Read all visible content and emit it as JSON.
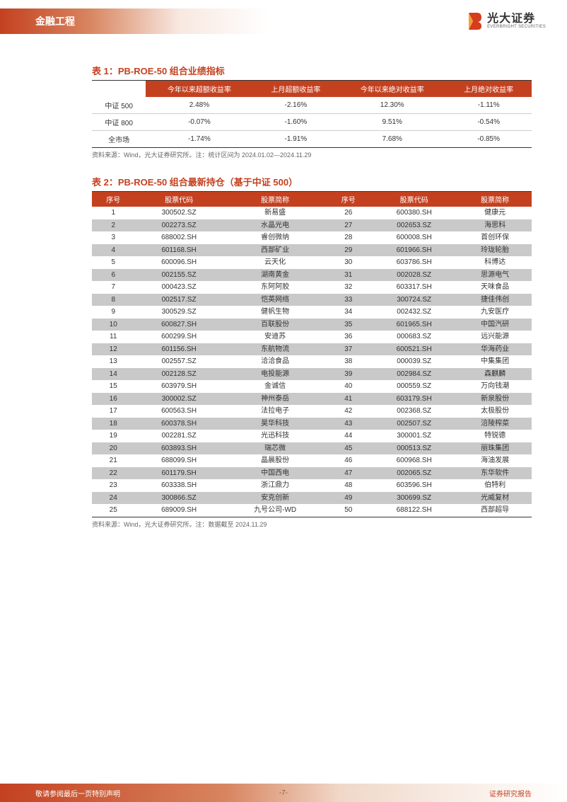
{
  "header": {
    "category": "金融工程",
    "logo_cn": "光大证券",
    "logo_en": "EVERBRIGHT SECURITIES"
  },
  "colors": {
    "brand": "#c44120",
    "header_text": "#ffffff",
    "row_even_bg": "#c9c9c9",
    "border": "#333333",
    "source_text": "#666666"
  },
  "table1": {
    "title": "表 1：PB-ROE-50 组合业绩指标",
    "columns": [
      "",
      "今年以来超额收益率",
      "上月超额收益率",
      "今年以来绝对收益率",
      "上月绝对收益率"
    ],
    "rows": [
      [
        "中证 500",
        "2.48%",
        "-2.16%",
        "12.30%",
        "-1.11%"
      ],
      [
        "中证 800",
        "-0.07%",
        "-1.60%",
        "9.51%",
        "-0.54%"
      ],
      [
        "全市场",
        "-1.74%",
        "-1.91%",
        "7.68%",
        "-0.85%"
      ]
    ],
    "source": "资料来源：Wind，光大证券研究所。注：统计区间为 2024.01.02—2024.11.29"
  },
  "table2": {
    "title": "表 2：PB-ROE-50 组合最新持仓（基于中证 500）",
    "columns": [
      "序号",
      "股票代码",
      "股票简称",
      "序号",
      "股票代码",
      "股票简称"
    ],
    "rows": [
      [
        "1",
        "300502.SZ",
        "新易盛",
        "26",
        "600380.SH",
        "健康元"
      ],
      [
        "2",
        "002273.SZ",
        "水晶光电",
        "27",
        "002653.SZ",
        "海思科"
      ],
      [
        "3",
        "688002.SH",
        "睿创微纳",
        "28",
        "600008.SH",
        "首创环保"
      ],
      [
        "4",
        "601168.SH",
        "西部矿业",
        "29",
        "601966.SH",
        "玲珑轮胎"
      ],
      [
        "5",
        "600096.SH",
        "云天化",
        "30",
        "603786.SH",
        "科博达"
      ],
      [
        "6",
        "002155.SZ",
        "湖南黄金",
        "31",
        "002028.SZ",
        "思源电气"
      ],
      [
        "7",
        "000423.SZ",
        "东阿阿胶",
        "32",
        "603317.SH",
        "天味食品"
      ],
      [
        "8",
        "002517.SZ",
        "恺英网络",
        "33",
        "300724.SZ",
        "捷佳伟创"
      ],
      [
        "9",
        "300529.SZ",
        "健帆生物",
        "34",
        "002432.SZ",
        "九安医疗"
      ],
      [
        "10",
        "600827.SH",
        "百联股份",
        "35",
        "601965.SH",
        "中国汽研"
      ],
      [
        "11",
        "600299.SH",
        "安迪苏",
        "36",
        "000683.SZ",
        "远兴能源"
      ],
      [
        "12",
        "601156.SH",
        "东航物流",
        "37",
        "600521.SH",
        "华海药业"
      ],
      [
        "13",
        "002557.SZ",
        "洽洽食品",
        "38",
        "000039.SZ",
        "中集集团"
      ],
      [
        "14",
        "002128.SZ",
        "电投能源",
        "39",
        "002984.SZ",
        "森麒麟"
      ],
      [
        "15",
        "603979.SH",
        "金诚信",
        "40",
        "000559.SZ",
        "万向钱潮"
      ],
      [
        "16",
        "300002.SZ",
        "神州泰岳",
        "41",
        "603179.SH",
        "新泉股份"
      ],
      [
        "17",
        "600563.SH",
        "法拉电子",
        "42",
        "002368.SZ",
        "太极股份"
      ],
      [
        "18",
        "600378.SH",
        "昊华科技",
        "43",
        "002507.SZ",
        "涪陵榨菜"
      ],
      [
        "19",
        "002281.SZ",
        "光迅科技",
        "44",
        "300001.SZ",
        "特锐德"
      ],
      [
        "20",
        "603893.SH",
        "瑞芯微",
        "45",
        "000513.SZ",
        "丽珠集团"
      ],
      [
        "21",
        "688099.SH",
        "晶晨股份",
        "46",
        "600968.SH",
        "海油发展"
      ],
      [
        "22",
        "601179.SH",
        "中国西电",
        "47",
        "002065.SZ",
        "东华软件"
      ],
      [
        "23",
        "603338.SH",
        "浙江鼎力",
        "48",
        "603596.SH",
        "伯特利"
      ],
      [
        "24",
        "300866.SZ",
        "安克创新",
        "49",
        "300699.SZ",
        "光威复材"
      ],
      [
        "25",
        "689009.SH",
        "九号公司-WD",
        "50",
        "688122.SH",
        "西部超导"
      ]
    ],
    "source": "资料来源：Wind，光大证券研究所。注：数据截至 2024.11.29"
  },
  "footer": {
    "left": "敬请参阅最后一页特别声明",
    "center": "-7-",
    "right": "证券研究报告"
  }
}
